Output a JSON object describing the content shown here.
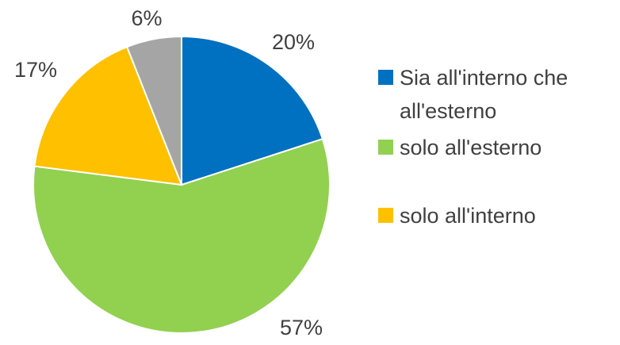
{
  "chart_data": {
    "type": "pie",
    "categories": [
      "Sia all'interno che all'esterno",
      "solo all'esterno",
      "solo all'interno",
      null
    ],
    "values": [
      20,
      57,
      17,
      6
    ],
    "value_labels": [
      "20%",
      "57%",
      "17%",
      "6%"
    ],
    "colors": [
      "#0070c0",
      "#92d050",
      "#ffc000",
      "#a5a5a5"
    ],
    "legend": "right"
  }
}
